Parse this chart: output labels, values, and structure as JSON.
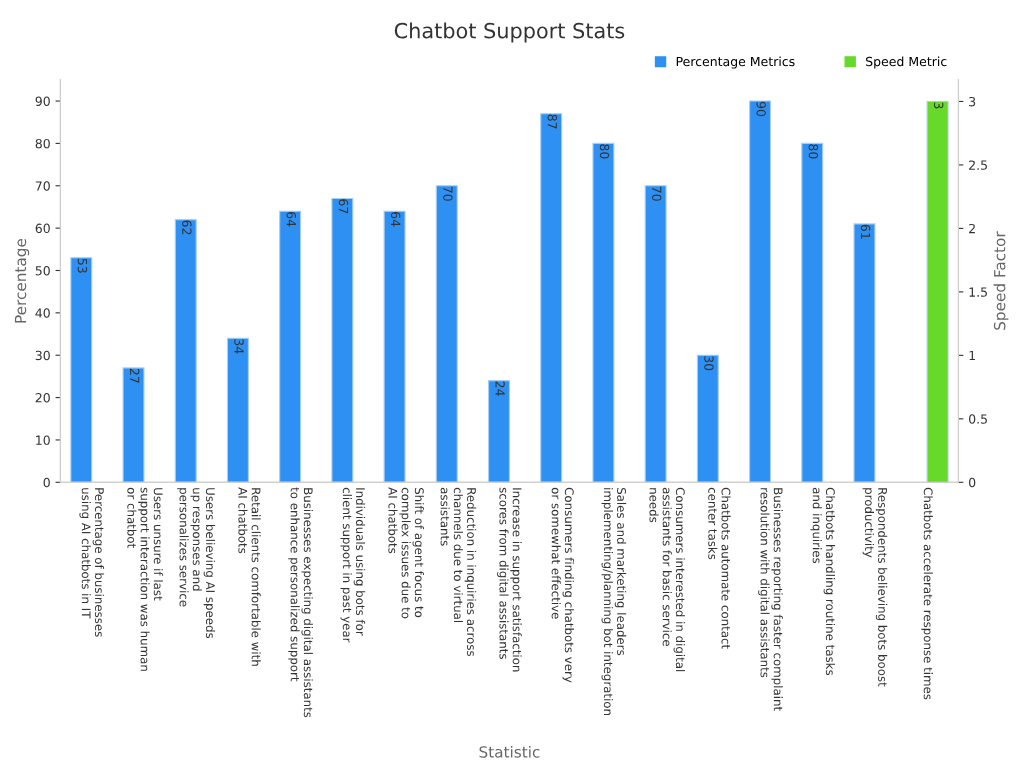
{
  "chart_data": {
    "type": "bar",
    "title": "Chatbot Support Stats",
    "xlabel": "Statistic",
    "ylabel": "Percentage",
    "y2label": "Speed Factor",
    "categories": [
      "Percentage of businesses\nusing AI chatbots in IT",
      "Users unsure if last\nsupport interaction was human\nor chatbot",
      "Users believing AI speeds\nup responses and\npersonalizes service",
      "Retail clients comfortable with\nAI chatbots",
      "Businesses expecting digital assistants\nto enhance personalized support",
      "Individuals using bots for\nclient support in past year",
      "Shift of agent focus to\ncomplex issues due to\nAI chatbots",
      "Reduction in inquiries across\nchannels due to virtual\nassistants",
      "Increase in support satisfaction\nscores from digital assistants",
      "Consumers finding chatbots very\nor somewhat effective",
      "Sales and marketing leaders\nimplementing/planning bot integration",
      "Consumers interested in digital\nassistants for basic service\nneeds",
      "Chatbots automate contact\ncenter tasks",
      "Businesses reporting faster complaint\nresolution with digital assistants",
      "Chatbots handling routine tasks\nand inquiries",
      "Respondents believing bots boost\nproductivity",
      "Chatbots accelerate response times"
    ],
    "series": [
      {
        "name": "Percentage Metrics",
        "color": "#2e90f2",
        "values": [
          53,
          27,
          62,
          34,
          64,
          67,
          64,
          70,
          24,
          87,
          80,
          70,
          30,
          90,
          80,
          61,
          null
        ]
      },
      {
        "name": "Speed Metric",
        "color": "#66d92a",
        "axis": "y2",
        "values": [
          null,
          null,
          null,
          null,
          null,
          null,
          null,
          null,
          null,
          null,
          null,
          null,
          null,
          null,
          null,
          null,
          3
        ]
      }
    ],
    "ylim": [
      0,
      95
    ],
    "yticks": [
      0,
      10,
      20,
      30,
      40,
      50,
      60,
      70,
      80,
      90
    ],
    "y2lim": [
      0,
      3.17
    ],
    "y2ticks": [
      0,
      0.5,
      1,
      1.5,
      2,
      2.5,
      3
    ],
    "data_labels": true,
    "grid": false,
    "legend": "top right"
  }
}
